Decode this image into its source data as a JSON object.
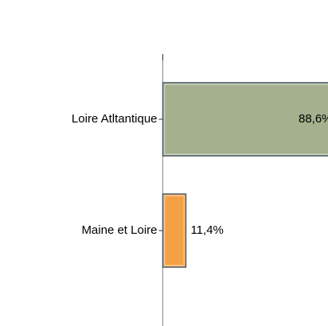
{
  "chart_data": {
    "type": "barh",
    "categories": [
      "Loire Atltantique",
      "Maine et Loire"
    ],
    "values": [
      88.6,
      11.4
    ],
    "value_labels": [
      "88,6%",
      "11,4%"
    ],
    "colors": [
      "#a4b08e",
      "#f4a145"
    ]
  }
}
